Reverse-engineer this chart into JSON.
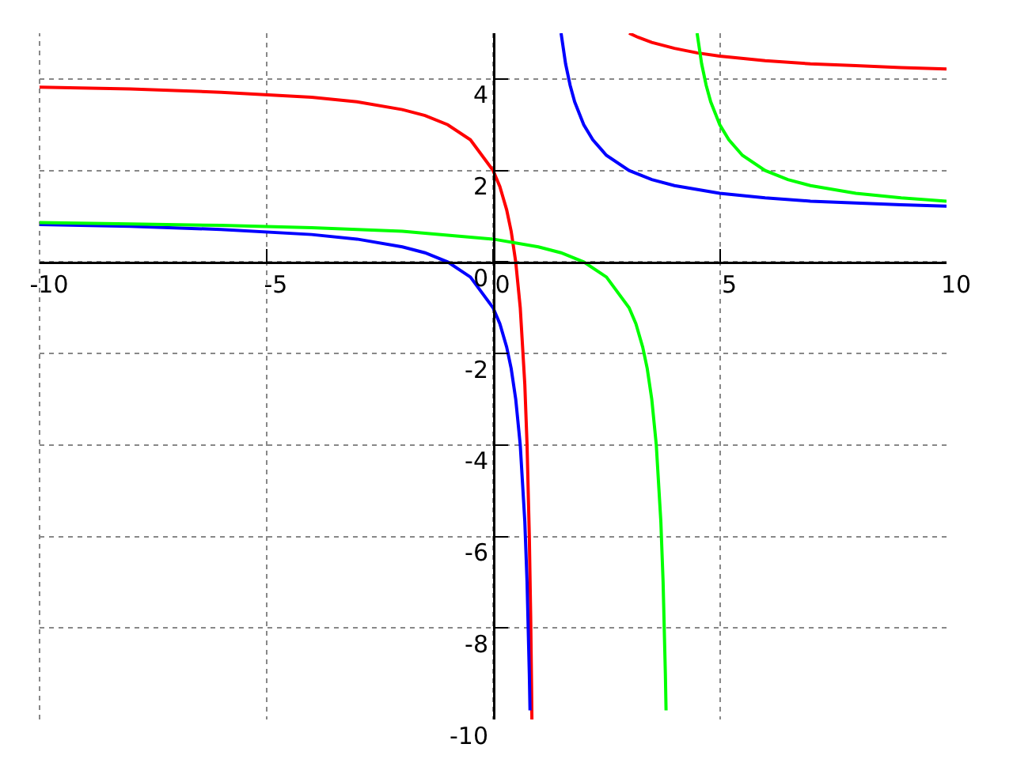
{
  "chart_data": {
    "type": "line",
    "xlim": [
      -10,
      10
    ],
    "xticks": [
      -10,
      -5,
      0,
      5,
      10
    ],
    "ylim": [
      -10,
      5
    ],
    "yticks": [
      -10,
      -8,
      -6,
      -4,
      -2,
      0,
      2,
      4
    ],
    "grid": true,
    "marker": "none",
    "line_style": "solid",
    "series": [
      {
        "color": "#ff0000",
        "x": [
          -10,
          -8,
          -6,
          -4,
          -3,
          -2,
          -1.5,
          -1,
          -0.5,
          0,
          0.15,
          0.3,
          0.4,
          0.5,
          0.6,
          0.7,
          0.75,
          0.8,
          0.83,
          0.85,
          0.857,
          0.9,
          3,
          3.2,
          3.5,
          4,
          4.5,
          5,
          6,
          7,
          8,
          9,
          10
        ],
        "values": [
          3.82,
          3.78,
          3.71,
          3.6,
          3.5,
          3.33,
          3.2,
          3,
          2.67,
          2,
          1.65,
          1.14,
          0.67,
          0,
          -1,
          -2.67,
          -4,
          -6,
          -7.76,
          -9.33,
          -10,
          null,
          5,
          4.91,
          4.8,
          4.67,
          4.57,
          4.5,
          4.4,
          4.33,
          4.29,
          4.25,
          4.22
        ]
      },
      {
        "color": "#0000ff",
        "x": [
          -10,
          -8,
          -6,
          -4,
          -3,
          -2,
          -1.5,
          -1,
          -0.5,
          0,
          0.15,
          0.3,
          0.4,
          0.5,
          0.6,
          0.7,
          0.75,
          0.8,
          0.815,
          1,
          1.5,
          1.6,
          1.7,
          1.8,
          2,
          2.2,
          2.5,
          3,
          3.5,
          4,
          5,
          6,
          7,
          8,
          9,
          10
        ],
        "values": [
          0.82,
          0.78,
          0.71,
          0.6,
          0.5,
          0.33,
          0.2,
          0,
          -0.33,
          -1,
          -1.35,
          -1.86,
          -2.33,
          -3,
          -4,
          -5.67,
          -7,
          -9,
          -9.8,
          null,
          5,
          4.33,
          3.86,
          3.5,
          3,
          2.67,
          2.33,
          2,
          1.8,
          1.67,
          1.5,
          1.4,
          1.33,
          1.29,
          1.25,
          1.22
        ]
      },
      {
        "color": "#00ff00",
        "x": [
          -10,
          -8,
          -6,
          -4,
          -2,
          0,
          1,
          1.5,
          2,
          2.5,
          3,
          3.15,
          3.3,
          3.4,
          3.5,
          3.6,
          3.7,
          3.75,
          3.8,
          3.815,
          4,
          4.5,
          4.6,
          4.7,
          4.8,
          5,
          5.2,
          5.5,
          6,
          6.5,
          7,
          8,
          9,
          10
        ],
        "values": [
          0.86,
          0.83,
          0.8,
          0.75,
          0.67,
          0.5,
          0.33,
          0.2,
          0,
          -0.33,
          -1,
          -1.35,
          -1.86,
          -2.33,
          -3,
          -4,
          -5.67,
          -7,
          -9,
          -9.8,
          null,
          5,
          4.33,
          3.86,
          3.5,
          3,
          2.67,
          2.33,
          2,
          1.8,
          1.67,
          1.5,
          1.4,
          1.33
        ]
      }
    ]
  }
}
